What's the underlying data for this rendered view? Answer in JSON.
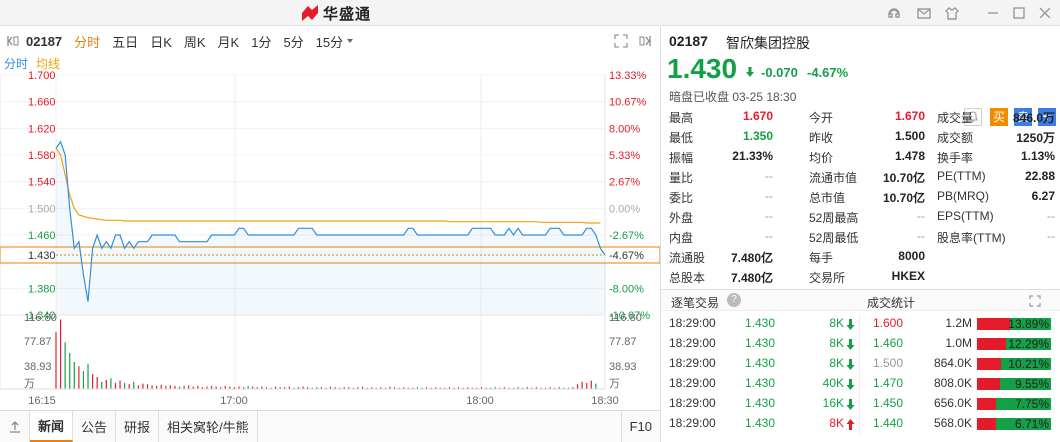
{
  "app": {
    "brand": "华盛通"
  },
  "toolbar": {
    "code": "02187",
    "tabs": [
      "分时",
      "五日",
      "日K",
      "周K",
      "月K",
      "1分",
      "5分",
      "15分"
    ],
    "active_tab": "分时"
  },
  "legend": {
    "a": "分时",
    "b": "均线"
  },
  "chart_data": {
    "type": "line",
    "price_axis": [
      "1.700",
      "1.660",
      "1.620",
      "1.580",
      "1.540",
      "1.500",
      "1.460",
      "1.430",
      "1.380",
      "1.340"
    ],
    "pct_axis": [
      "13.33%",
      "10.67%",
      "8.00%",
      "5.33%",
      "2.67%",
      "0.00%",
      "-2.67%",
      "-4.67%",
      "-8.00%",
      "-10.67%"
    ],
    "volume_axis": [
      "116.80",
      "77.87",
      "38.93",
      "万"
    ],
    "time_axis": [
      "16:15",
      "17:00",
      "18:00",
      "18:30"
    ],
    "ylim": [
      1.34,
      1.7
    ],
    "prev_close": 1.5,
    "current": 1.43,
    "price_series": [
      1.59,
      1.6,
      1.58,
      1.5,
      1.44,
      1.45,
      1.4,
      1.36,
      1.44,
      1.46,
      1.44,
      1.45,
      1.44,
      1.46,
      1.46,
      1.44,
      1.45,
      1.44,
      1.45,
      1.45,
      1.45,
      1.46,
      1.46,
      1.46,
      1.46,
      1.46,
      1.46,
      1.45,
      1.45,
      1.45,
      1.45,
      1.45,
      1.45,
      1.45,
      1.46,
      1.46,
      1.46,
      1.46,
      1.46,
      1.46,
      1.47,
      1.47,
      1.46,
      1.46,
      1.46,
      1.46,
      1.46,
      1.46,
      1.46,
      1.46,
      1.46,
      1.46,
      1.46,
      1.47,
      1.47,
      1.47,
      1.47,
      1.46,
      1.46,
      1.46,
      1.46,
      1.46,
      1.46,
      1.46,
      1.46,
      1.46,
      1.46,
      1.46,
      1.46,
      1.46,
      1.46,
      1.46,
      1.46,
      1.46,
      1.46,
      1.46,
      1.46,
      1.47,
      1.47,
      1.46,
      1.46,
      1.46,
      1.46,
      1.46,
      1.46,
      1.46,
      1.46,
      1.46,
      1.46,
      1.46,
      1.46,
      1.47,
      1.47,
      1.47,
      1.47,
      1.47,
      1.46,
      1.46,
      1.46,
      1.47,
      1.46,
      1.47,
      1.46,
      1.46,
      1.46,
      1.46,
      1.46,
      1.46,
      1.47,
      1.47,
      1.47,
      1.46,
      1.46,
      1.46,
      1.46,
      1.46,
      1.47,
      1.47,
      1.46,
      1.44,
      1.43
    ],
    "avg_series": [
      1.59,
      1.58,
      1.55,
      1.52,
      1.5,
      1.49,
      1.488,
      1.486,
      1.485,
      1.484,
      1.483,
      1.482,
      1.482,
      1.482,
      1.482,
      1.481,
      1.481,
      1.481,
      1.481,
      1.481,
      1.481,
      1.481,
      1.481,
      1.481,
      1.481,
      1.481,
      1.481,
      1.481,
      1.481,
      1.481,
      1.481,
      1.481,
      1.481,
      1.481,
      1.481,
      1.481,
      1.481,
      1.481,
      1.481,
      1.481,
      1.481,
      1.481,
      1.481,
      1.481,
      1.481,
      1.481,
      1.481,
      1.481,
      1.481,
      1.481,
      1.481,
      1.481,
      1.481,
      1.481,
      1.481,
      1.481,
      1.481,
      1.481,
      1.481,
      1.481,
      1.481,
      1.481,
      1.481,
      1.481,
      1.481,
      1.481,
      1.481,
      1.481,
      1.481,
      1.481,
      1.481,
      1.481,
      1.481,
      1.481,
      1.481,
      1.481,
      1.481,
      1.481,
      1.481,
      1.481,
      1.481,
      1.481,
      1.481,
      1.481,
      1.481,
      1.481,
      1.48,
      1.48,
      1.48,
      1.48,
      1.48,
      1.48,
      1.48,
      1.48,
      1.48,
      1.48,
      1.48,
      1.48,
      1.48,
      1.48,
      1.48,
      1.48,
      1.48,
      1.48,
      1.48,
      1.48,
      1.479,
      1.479,
      1.479,
      1.479,
      1.479,
      1.479,
      1.479,
      1.479,
      1.479,
      1.479,
      1.478,
      1.478,
      1.478,
      1.478
    ],
    "volume_series": [
      95,
      116,
      78,
      60,
      45,
      38,
      30,
      42,
      25,
      20,
      12,
      15,
      18,
      10,
      14,
      10,
      8,
      12,
      6,
      9,
      8,
      6,
      5,
      7,
      5,
      6,
      5,
      4,
      5,
      6,
      4,
      5,
      3,
      4,
      5,
      4,
      3,
      5,
      4,
      3,
      4,
      3,
      5,
      4,
      3,
      4,
      3,
      2,
      4,
      3,
      3,
      4,
      2,
      3,
      4,
      3,
      2,
      3,
      3,
      2,
      4,
      3,
      2,
      3,
      3,
      2,
      3,
      4,
      2,
      3,
      2,
      3,
      2,
      4,
      3,
      2,
      3,
      2,
      2,
      3,
      2,
      3,
      2,
      3,
      2,
      2,
      3,
      2,
      3,
      2,
      3,
      2,
      2,
      3,
      2,
      2,
      3,
      2,
      3,
      2,
      2,
      3,
      2,
      3,
      2,
      3,
      2,
      2,
      3,
      2,
      3,
      2,
      2,
      3,
      8,
      12,
      10,
      14,
      9
    ],
    "volume_max": 116.8
  },
  "quote": {
    "code": "02187",
    "name": "智欣集团控股",
    "price": "1.430",
    "change": "-0.070",
    "change_pct": "-4.67%",
    "status": "暗盘已收盘 03-25 18:30"
  },
  "actions": [
    "买",
    "卖",
    "+"
  ],
  "stats": [
    [
      {
        "l": "最高",
        "v": "1.670",
        "c": "red"
      },
      {
        "l": "今开",
        "v": "1.670",
        "c": "red"
      },
      {
        "l": "成交量",
        "v": "846.0万",
        "c": "black"
      }
    ],
    [
      {
        "l": "最低",
        "v": "1.350",
        "c": "green"
      },
      {
        "l": "昨收",
        "v": "1.500",
        "c": "black"
      },
      {
        "l": "成交额",
        "v": "1250万",
        "c": "black"
      }
    ],
    [
      {
        "l": "振幅",
        "v": "21.33%",
        "c": "black"
      },
      {
        "l": "均价",
        "v": "1.478",
        "c": "black"
      },
      {
        "l": "换手率",
        "v": "1.13%",
        "c": "black"
      }
    ],
    [
      {
        "l": "量比",
        "v": "--",
        "c": "gray"
      },
      {
        "l": "流通市值",
        "v": "10.70亿",
        "c": "black"
      },
      {
        "l": "PE(TTM)",
        "v": "22.88",
        "c": "black"
      }
    ],
    [
      {
        "l": "委比",
        "v": "--",
        "c": "gray"
      },
      {
        "l": "总市值",
        "v": "10.70亿",
        "c": "black"
      },
      {
        "l": "PB(MRQ)",
        "v": "6.27",
        "c": "black"
      }
    ],
    [
      {
        "l": "外盘",
        "v": "--",
        "c": "gray"
      },
      {
        "l": "52周最高",
        "v": "--",
        "c": "gray"
      },
      {
        "l": "EPS(TTM)",
        "v": "--",
        "c": "gray"
      }
    ],
    [
      {
        "l": "内盘",
        "v": "--",
        "c": "gray"
      },
      {
        "l": "52周最低",
        "v": "--",
        "c": "gray"
      },
      {
        "l": "股息率(TTM)",
        "v": "--",
        "c": "gray"
      }
    ],
    [
      {
        "l": "流通股",
        "v": "7.480亿",
        "c": "black"
      },
      {
        "l": "每手",
        "v": "8000",
        "c": "black"
      },
      {
        "l": "",
        "v": "",
        "c": "black"
      }
    ],
    [
      {
        "l": "总股本",
        "v": "7.480亿",
        "c": "black"
      },
      {
        "l": "交易所",
        "v": "HKEX",
        "c": "black"
      },
      {
        "l": "",
        "v": "",
        "c": "black"
      }
    ]
  ],
  "trades_header": {
    "left": "逐笔交易",
    "right": "成交统计"
  },
  "trades": [
    {
      "t": "18:29:00",
      "p": "1.430",
      "v": "8K",
      "dir": "down"
    },
    {
      "t": "18:29:00",
      "p": "1.430",
      "v": "8K",
      "dir": "down"
    },
    {
      "t": "18:29:00",
      "p": "1.430",
      "v": "8K",
      "dir": "down"
    },
    {
      "t": "18:29:00",
      "p": "1.430",
      "v": "40K",
      "dir": "down"
    },
    {
      "t": "18:29:00",
      "p": "1.430",
      "v": "16K",
      "dir": "down"
    },
    {
      "t": "18:29:00",
      "p": "1.430",
      "v": "8K",
      "dir": "up"
    }
  ],
  "volume_stats": [
    {
      "price": "1.600",
      "vol": "1.2M",
      "pct": "13.89%",
      "frac": 0.1389,
      "pc": "red"
    },
    {
      "price": "1.460",
      "vol": "1.0M",
      "pct": "12.29%",
      "frac": 0.1229,
      "pc": "green"
    },
    {
      "price": "1.500",
      "vol": "864.0K",
      "pct": "10.21%",
      "frac": 0.1021,
      "pc": "gray"
    },
    {
      "price": "1.470",
      "vol": "808.0K",
      "pct": "9.55%",
      "frac": 0.0955,
      "pc": "green"
    },
    {
      "price": "1.450",
      "vol": "656.0K",
      "pct": "7.75%",
      "frac": 0.0775,
      "pc": "green"
    },
    {
      "price": "1.440",
      "vol": "568.0K",
      "pct": "6.71%",
      "frac": 0.0671,
      "pc": "green"
    }
  ],
  "bottom_tabs": [
    "新闻",
    "公告",
    "研报",
    "相关窝轮/牛熊"
  ],
  "bottom_right": "F10",
  "colors": {
    "up": "#e41c2a",
    "down": "#14a046",
    "accent": "#e8820c",
    "line": "#2f8ee0",
    "avg": "#f0a30a"
  }
}
